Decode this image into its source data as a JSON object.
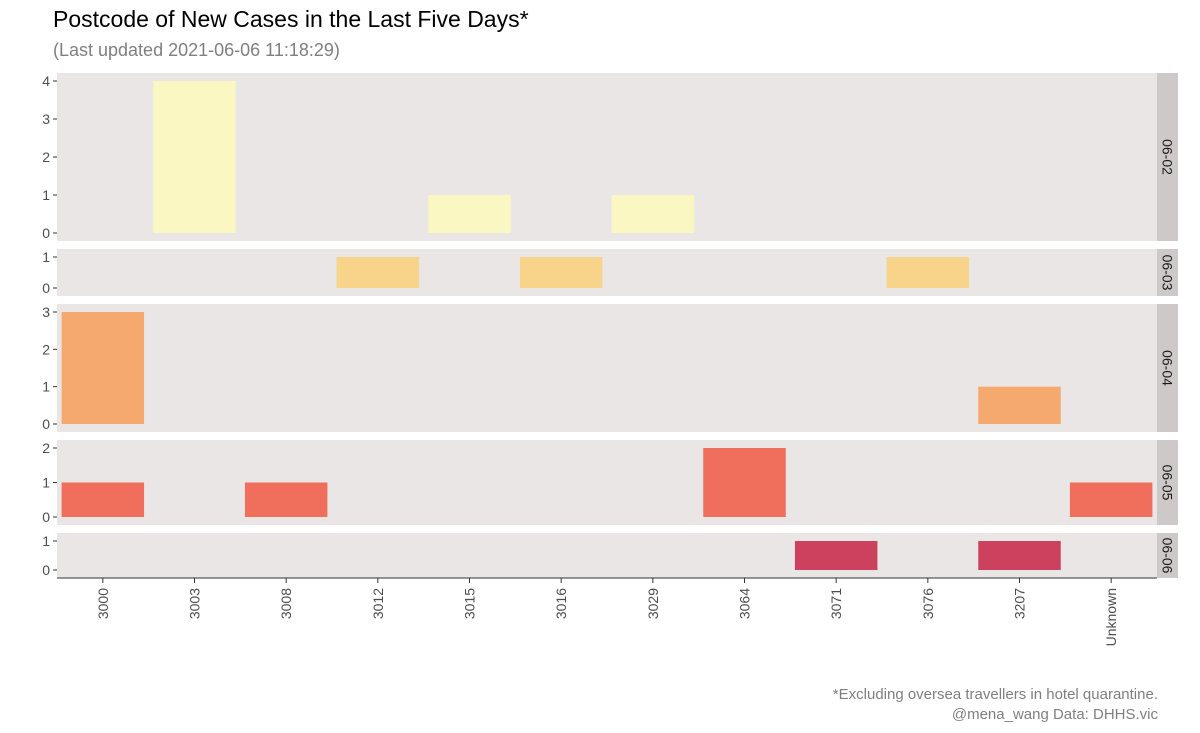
{
  "title": "Postcode of New Cases in the Last Five Days*",
  "subtitle": "(Last updated 2021-06-06 11:18:29)",
  "caption_line1": "*Excluding oversea travellers in hotel quarantine.",
  "caption_line2": "@mena_wang   Data: DHHS.vic",
  "colors": {
    "panel_bg": "#ebe6e6",
    "strip_bg": "#cdc9c9",
    "06-02": "#faf7c2",
    "06-03": "#f8d48a",
    "06-04": "#f6a96f",
    "06-05": "#ef6f5c",
    "06-06": "#cc425e"
  },
  "chart_data": {
    "type": "bar",
    "facet": "rows",
    "facet_scales": "free_y",
    "grid": false,
    "categories": [
      "3000",
      "3003",
      "3008",
      "3012",
      "3015",
      "3016",
      "3029",
      "3064",
      "3071",
      "3076",
      "3207",
      "Unknown"
    ],
    "series": [
      {
        "name": "06-02",
        "values": [
          0,
          4,
          0,
          0,
          1,
          0,
          1,
          0,
          0,
          0,
          0,
          0
        ],
        "ylim": [
          0,
          4
        ],
        "yticks": [
          0,
          1,
          2,
          3,
          4
        ]
      },
      {
        "name": "06-03",
        "values": [
          0,
          0,
          0,
          1,
          0,
          1,
          0,
          0,
          0,
          1,
          0,
          0
        ],
        "ylim": [
          0,
          1
        ],
        "yticks": [
          0,
          1
        ]
      },
      {
        "name": "06-04",
        "values": [
          3,
          0,
          0,
          0,
          0,
          0,
          0,
          0,
          0,
          0,
          1,
          0
        ],
        "ylim": [
          0,
          3
        ],
        "yticks": [
          0,
          1,
          2,
          3
        ]
      },
      {
        "name": "06-05",
        "values": [
          1,
          0,
          1,
          0,
          0,
          0,
          0,
          2,
          0,
          0,
          0,
          1
        ],
        "ylim": [
          0,
          2
        ],
        "yticks": [
          0,
          1,
          2
        ]
      },
      {
        "name": "06-06",
        "values": [
          0,
          0,
          0,
          0,
          0,
          0,
          0,
          0,
          1,
          0,
          1,
          0
        ],
        "ylim": [
          0,
          1
        ],
        "yticks": [
          0,
          1
        ]
      }
    ]
  }
}
